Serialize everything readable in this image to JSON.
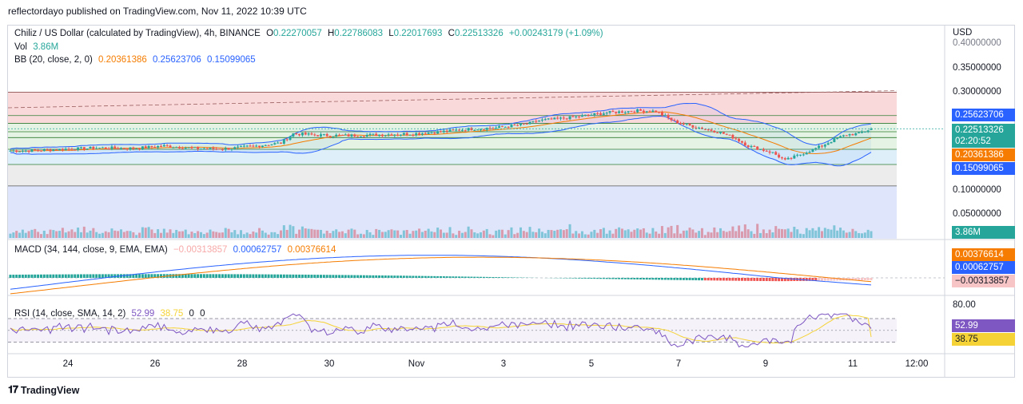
{
  "header": {
    "published": "reflectordayo published on TradingView.com, Nov 11, 2022 10:39 UTC"
  },
  "main_legend": {
    "symbol": "Chiliz / US Dollar (calculated by TradingView), 4h, BINANCE",
    "o_label": "O",
    "o_value": "0.22270057",
    "h_label": "H",
    "h_value": "0.22786083",
    "l_label": "L",
    "l_value": "0.22017693",
    "c_label": "C",
    "c_value": "0.22513326",
    "change": "+0.00243179 (+1.09%)",
    "vol_label": "Vol",
    "vol_value": "3.86M",
    "bb_label": "BB (20, close, 2, 0)",
    "bb_basis": "0.20361386",
    "bb_upper": "0.25623706",
    "bb_lower": "0.15099065"
  },
  "macd_legend": {
    "label": "MACD (34, 144, close, 9, EMA, EMA)",
    "hist": "−0.00313857",
    "macd": "0.00062757",
    "signal": "0.00376614"
  },
  "rsi_legend": {
    "label": "RSI (14, close, SMA, 14, 2)",
    "rsi": "52.99",
    "sma": "38.75",
    "extra1": "0",
    "extra2": "0"
  },
  "price_axis": {
    "currency": "USD",
    "ticks": [
      "0.40000000",
      "0.35000000",
      "0.30000000",
      "0.10000000",
      "0.05000000"
    ],
    "tags": {
      "upper": "0.25623706",
      "close": "0.22513326",
      "countdown": "02:20:52",
      "basis": "0.20361386",
      "lower": "0.15099065",
      "vol": "3.86M"
    }
  },
  "macd_axis": {
    "signal": "0.00376614",
    "macd": "0.00062757",
    "hist": "−0.00313857"
  },
  "rsi_axis": {
    "top": "80.00",
    "rsi": "52.99",
    "sma": "38.75"
  },
  "time_axis": [
    "24",
    "26",
    "28",
    "30",
    "Nov",
    "3",
    "5",
    "7",
    "9",
    "11",
    "12:00"
  ],
  "colors": {
    "up": "#26a69a",
    "down": "#ef5350",
    "bb_basis": "#f57c00",
    "bb_band": "#2962ff",
    "macd": "#2962ff",
    "signal": "#f57c00",
    "rsi": "#7e57c2",
    "rsi_sma": "#f5d337"
  },
  "chart_data": {
    "type": "candlestick",
    "title": "Chiliz / US Dollar (calculated by TradingView), 4h, BINANCE",
    "timeframe": "4h",
    "x_ticks": [
      "24",
      "26",
      "28",
      "30",
      "Nov",
      "3",
      "5",
      "7",
      "9",
      "11",
      "12:00"
    ],
    "y_ticks": [
      0.05,
      0.1,
      0.3,
      0.35,
      0.4
    ],
    "ylim": [
      0.0,
      0.42
    ],
    "last": {
      "open": 0.22270057,
      "high": 0.22786083,
      "low": 0.22017693,
      "close": 0.22513326,
      "change": 0.00243179,
      "change_pct": 1.09
    },
    "close_path": [
      [
        0,
        0.18
      ],
      [
        10,
        0.181
      ],
      [
        20,
        0.184
      ],
      [
        30,
        0.186
      ],
      [
        40,
        0.185
      ],
      [
        50,
        0.19
      ],
      [
        60,
        0.185
      ],
      [
        70,
        0.184
      ],
      [
        80,
        0.19
      ],
      [
        88,
        0.196
      ],
      [
        92,
        0.215
      ],
      [
        100,
        0.212
      ],
      [
        110,
        0.211
      ],
      [
        120,
        0.213
      ],
      [
        132,
        0.215
      ],
      [
        140,
        0.219
      ],
      [
        148,
        0.224
      ],
      [
        158,
        0.227
      ],
      [
        168,
        0.235
      ],
      [
        172,
        0.242
      ],
      [
        178,
        0.245
      ],
      [
        186,
        0.251
      ],
      [
        194,
        0.258
      ],
      [
        204,
        0.262
      ],
      [
        210,
        0.261
      ],
      [
        216,
        0.24
      ],
      [
        222,
        0.23
      ],
      [
        228,
        0.222
      ],
      [
        232,
        0.215
      ],
      [
        236,
        0.205
      ],
      [
        240,
        0.19
      ],
      [
        244,
        0.183
      ],
      [
        248,
        0.176
      ],
      [
        252,
        0.16
      ],
      [
        256,
        0.17
      ],
      [
        260,
        0.18
      ],
      [
        264,
        0.19
      ],
      [
        268,
        0.203
      ],
      [
        272,
        0.213
      ],
      [
        276,
        0.215
      ],
      [
        280,
        0.225
      ]
    ],
    "bollinger": {
      "length": 20,
      "mult": 2,
      "basis": 0.20361386,
      "upper": 0.25623706,
      "lower": 0.15099065
    },
    "horizontal_levels": [
      0.108,
      0.152,
      0.183,
      0.207,
      0.219,
      0.236,
      0.252,
      0.3
    ],
    "volume": {
      "last": "3.86M"
    },
    "macd": {
      "fast": 34,
      "slow": 144,
      "signal": 9,
      "macd": 0.00062757,
      "signal_value": 0.00376614,
      "hist": -0.00313857
    },
    "rsi": {
      "length": 14,
      "value": 52.99,
      "sma": 38.75,
      "upper": 70,
      "lower": 30
    }
  }
}
